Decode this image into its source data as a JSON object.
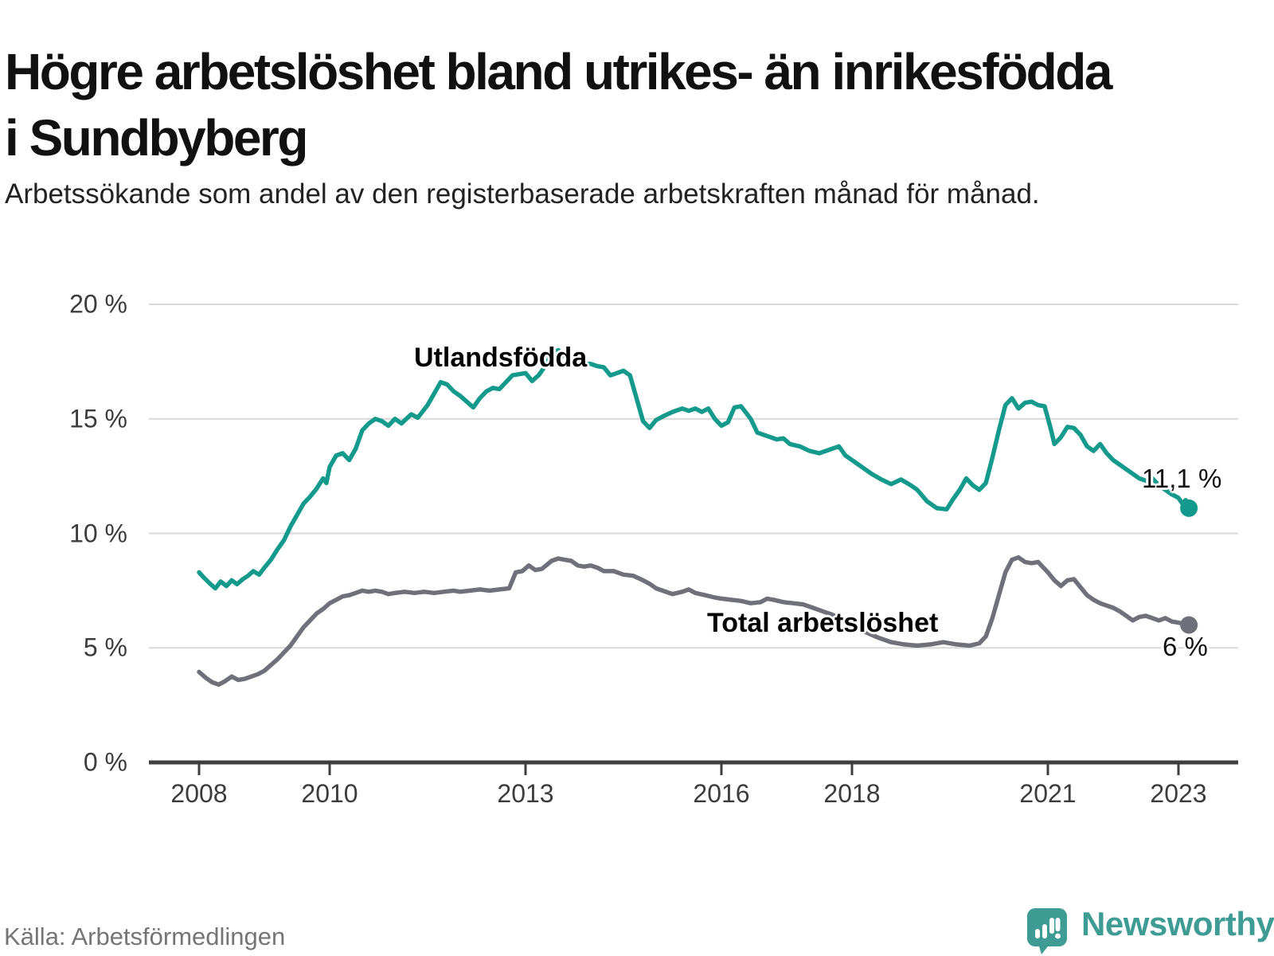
{
  "header": {
    "title": "Högre arbetslöshet bland utrikes- än inrikesfödda i Sundbyberg",
    "subtitle": "Arbetssökande som andel av den registerbaserade arbetskraften månad för månad."
  },
  "footer": {
    "source": "Källa: Arbetsförmedlingen",
    "brand": "Newsworthy",
    "brand_color": "#3e9c94",
    "logo_icon": "bar-chart-speech-bubble-icon"
  },
  "colors": {
    "teal_series": "#149a8d",
    "gray_series": "#70707a",
    "gridline": "#d9d9d9",
    "axis": "#3f3f3f",
    "annotation_text": "#111111"
  },
  "chart_data": {
    "type": "line",
    "title": "Högre arbetslöshet bland utrikes- än inrikesfödda i Sundbyberg",
    "subtitle": "Arbetssökande som andel av den registerbaserade arbetskraften månad för månad.",
    "xlabel": "",
    "ylabel": "",
    "unit": "%",
    "grid": true,
    "legend_position": "inline-labels-on-lines",
    "x_range": [
      2007.25,
      2023.95
    ],
    "ylim": [
      0,
      21
    ],
    "x_ticks": [
      2008,
      2010,
      2013,
      2016,
      2018,
      2021,
      2023
    ],
    "x_tick_labels": [
      "2008",
      "2010",
      "2013",
      "2016",
      "2018",
      "2021",
      "2023"
    ],
    "y_ticks": [
      0,
      5,
      10,
      15,
      20
    ],
    "y_tick_labels": [
      "0 %",
      "5 %",
      "10 %",
      "15 %",
      "20 %"
    ],
    "series": [
      {
        "name": "Utlandsfödda",
        "color": "#149a8d",
        "end_label": "11,1 %",
        "end_value": 11.1,
        "points": [
          [
            2008.0,
            8.3
          ],
          [
            2008.08,
            8.05
          ],
          [
            2008.17,
            7.8
          ],
          [
            2008.25,
            7.6
          ],
          [
            2008.33,
            7.9
          ],
          [
            2008.42,
            7.7
          ],
          [
            2008.5,
            7.95
          ],
          [
            2008.58,
            7.78
          ],
          [
            2008.67,
            8.0
          ],
          [
            2008.75,
            8.15
          ],
          [
            2008.83,
            8.35
          ],
          [
            2008.92,
            8.2
          ],
          [
            2009.0,
            8.5
          ],
          [
            2009.1,
            8.85
          ],
          [
            2009.2,
            9.3
          ],
          [
            2009.3,
            9.7
          ],
          [
            2009.4,
            10.3
          ],
          [
            2009.5,
            10.8
          ],
          [
            2009.6,
            11.3
          ],
          [
            2009.7,
            11.6
          ],
          [
            2009.8,
            11.95
          ],
          [
            2009.9,
            12.4
          ],
          [
            2009.95,
            12.2
          ],
          [
            2010.0,
            12.9
          ],
          [
            2010.1,
            13.4
          ],
          [
            2010.2,
            13.5
          ],
          [
            2010.3,
            13.2
          ],
          [
            2010.4,
            13.7
          ],
          [
            2010.5,
            14.5
          ],
          [
            2010.6,
            14.8
          ],
          [
            2010.7,
            15.0
          ],
          [
            2010.8,
            14.9
          ],
          [
            2010.9,
            14.7
          ],
          [
            2011.0,
            15.0
          ],
          [
            2011.1,
            14.8
          ],
          [
            2011.25,
            15.2
          ],
          [
            2011.35,
            15.05
          ],
          [
            2011.5,
            15.6
          ],
          [
            2011.6,
            16.1
          ],
          [
            2011.7,
            16.6
          ],
          [
            2011.8,
            16.5
          ],
          [
            2011.9,
            16.2
          ],
          [
            2012.0,
            16.0
          ],
          [
            2012.1,
            15.75
          ],
          [
            2012.2,
            15.5
          ],
          [
            2012.3,
            15.9
          ],
          [
            2012.4,
            16.2
          ],
          [
            2012.5,
            16.35
          ],
          [
            2012.6,
            16.3
          ],
          [
            2012.7,
            16.6
          ],
          [
            2012.8,
            16.9
          ],
          [
            2012.9,
            16.95
          ],
          [
            2013.0,
            17.0
          ],
          [
            2013.1,
            16.65
          ],
          [
            2013.2,
            16.9
          ],
          [
            2013.3,
            17.3
          ],
          [
            2013.4,
            17.85
          ],
          [
            2013.5,
            18.0
          ],
          [
            2013.6,
            17.75
          ],
          [
            2013.7,
            17.6
          ],
          [
            2013.8,
            17.5
          ],
          [
            2013.9,
            17.4
          ],
          [
            2014.0,
            17.4
          ],
          [
            2014.1,
            17.3
          ],
          [
            2014.2,
            17.25
          ],
          [
            2014.3,
            16.9
          ],
          [
            2014.4,
            17.0
          ],
          [
            2014.5,
            17.1
          ],
          [
            2014.6,
            16.9
          ],
          [
            2014.7,
            15.9
          ],
          [
            2014.8,
            14.9
          ],
          [
            2014.9,
            14.6
          ],
          [
            2015.0,
            14.95
          ],
          [
            2015.1,
            15.1
          ],
          [
            2015.25,
            15.3
          ],
          [
            2015.4,
            15.45
          ],
          [
            2015.5,
            15.35
          ],
          [
            2015.6,
            15.45
          ],
          [
            2015.7,
            15.3
          ],
          [
            2015.8,
            15.45
          ],
          [
            2015.9,
            15.0
          ],
          [
            2016.0,
            14.7
          ],
          [
            2016.1,
            14.85
          ],
          [
            2016.2,
            15.5
          ],
          [
            2016.3,
            15.55
          ],
          [
            2016.45,
            15.0
          ],
          [
            2016.55,
            14.4
          ],
          [
            2016.7,
            14.25
          ],
          [
            2016.85,
            14.1
          ],
          [
            2016.95,
            14.15
          ],
          [
            2017.05,
            13.9
          ],
          [
            2017.2,
            13.8
          ],
          [
            2017.35,
            13.6
          ],
          [
            2017.5,
            13.5
          ],
          [
            2017.65,
            13.65
          ],
          [
            2017.8,
            13.8
          ],
          [
            2017.9,
            13.4
          ],
          [
            2018.0,
            13.2
          ],
          [
            2018.15,
            12.9
          ],
          [
            2018.3,
            12.6
          ],
          [
            2018.45,
            12.35
          ],
          [
            2018.6,
            12.15
          ],
          [
            2018.75,
            12.35
          ],
          [
            2018.9,
            12.1
          ],
          [
            2019.0,
            11.9
          ],
          [
            2019.15,
            11.4
          ],
          [
            2019.3,
            11.1
          ],
          [
            2019.45,
            11.05
          ],
          [
            2019.55,
            11.5
          ],
          [
            2019.65,
            11.9
          ],
          [
            2019.75,
            12.4
          ],
          [
            2019.85,
            12.1
          ],
          [
            2019.95,
            11.9
          ],
          [
            2020.05,
            12.2
          ],
          [
            2020.15,
            13.3
          ],
          [
            2020.25,
            14.5
          ],
          [
            2020.35,
            15.6
          ],
          [
            2020.45,
            15.9
          ],
          [
            2020.55,
            15.45
          ],
          [
            2020.65,
            15.7
          ],
          [
            2020.75,
            15.75
          ],
          [
            2020.85,
            15.6
          ],
          [
            2020.95,
            15.55
          ],
          [
            2021.05,
            14.5
          ],
          [
            2021.1,
            13.9
          ],
          [
            2021.2,
            14.2
          ],
          [
            2021.3,
            14.65
          ],
          [
            2021.4,
            14.6
          ],
          [
            2021.5,
            14.3
          ],
          [
            2021.6,
            13.8
          ],
          [
            2021.7,
            13.6
          ],
          [
            2021.8,
            13.9
          ],
          [
            2021.9,
            13.5
          ],
          [
            2022.0,
            13.2
          ],
          [
            2022.1,
            13.0
          ],
          [
            2022.2,
            12.8
          ],
          [
            2022.3,
            12.6
          ],
          [
            2022.4,
            12.4
          ],
          [
            2022.5,
            12.3
          ],
          [
            2022.6,
            12.4
          ],
          [
            2022.7,
            12.1
          ],
          [
            2022.8,
            11.9
          ],
          [
            2022.9,
            11.7
          ],
          [
            2023.0,
            11.55
          ],
          [
            2023.06,
            11.3
          ],
          [
            2023.11,
            11.45
          ],
          [
            2023.16,
            11.1
          ]
        ]
      },
      {
        "name": "Total arbetslöshet",
        "color": "#70707a",
        "end_label": "6 %",
        "end_value": 6.0,
        "points": [
          [
            2008.0,
            3.95
          ],
          [
            2008.1,
            3.7
          ],
          [
            2008.2,
            3.5
          ],
          [
            2008.3,
            3.4
          ],
          [
            2008.4,
            3.55
          ],
          [
            2008.5,
            3.75
          ],
          [
            2008.6,
            3.6
          ],
          [
            2008.7,
            3.65
          ],
          [
            2008.8,
            3.75
          ],
          [
            2008.9,
            3.85
          ],
          [
            2009.0,
            4.0
          ],
          [
            2009.1,
            4.25
          ],
          [
            2009.2,
            4.5
          ],
          [
            2009.3,
            4.8
          ],
          [
            2009.4,
            5.1
          ],
          [
            2009.5,
            5.5
          ],
          [
            2009.6,
            5.9
          ],
          [
            2009.7,
            6.2
          ],
          [
            2009.8,
            6.5
          ],
          [
            2009.9,
            6.7
          ],
          [
            2010.0,
            6.95
          ],
          [
            2010.1,
            7.1
          ],
          [
            2010.2,
            7.25
          ],
          [
            2010.3,
            7.3
          ],
          [
            2010.4,
            7.4
          ],
          [
            2010.5,
            7.5
          ],
          [
            2010.6,
            7.45
          ],
          [
            2010.7,
            7.5
          ],
          [
            2010.8,
            7.45
          ],
          [
            2010.9,
            7.35
          ],
          [
            2011.0,
            7.4
          ],
          [
            2011.15,
            7.45
          ],
          [
            2011.3,
            7.4
          ],
          [
            2011.45,
            7.45
          ],
          [
            2011.6,
            7.4
          ],
          [
            2011.75,
            7.45
          ],
          [
            2011.9,
            7.5
          ],
          [
            2012.0,
            7.45
          ],
          [
            2012.15,
            7.5
          ],
          [
            2012.3,
            7.55
          ],
          [
            2012.45,
            7.5
          ],
          [
            2012.6,
            7.55
          ],
          [
            2012.75,
            7.6
          ],
          [
            2012.85,
            8.3
          ],
          [
            2012.95,
            8.35
          ],
          [
            2013.05,
            8.6
          ],
          [
            2013.15,
            8.4
          ],
          [
            2013.25,
            8.45
          ],
          [
            2013.4,
            8.8
          ],
          [
            2013.5,
            8.9
          ],
          [
            2013.6,
            8.85
          ],
          [
            2013.7,
            8.8
          ],
          [
            2013.8,
            8.6
          ],
          [
            2013.9,
            8.55
          ],
          [
            2014.0,
            8.6
          ],
          [
            2014.1,
            8.5
          ],
          [
            2014.2,
            8.35
          ],
          [
            2014.35,
            8.35
          ],
          [
            2014.5,
            8.2
          ],
          [
            2014.65,
            8.15
          ],
          [
            2014.8,
            7.95
          ],
          [
            2014.9,
            7.8
          ],
          [
            2015.0,
            7.6
          ],
          [
            2015.1,
            7.5
          ],
          [
            2015.25,
            7.35
          ],
          [
            2015.4,
            7.45
          ],
          [
            2015.5,
            7.55
          ],
          [
            2015.6,
            7.4
          ],
          [
            2015.75,
            7.3
          ],
          [
            2015.9,
            7.2
          ],
          [
            2016.0,
            7.15
          ],
          [
            2016.15,
            7.1
          ],
          [
            2016.3,
            7.05
          ],
          [
            2016.45,
            6.95
          ],
          [
            2016.6,
            7.0
          ],
          [
            2016.7,
            7.15
          ],
          [
            2016.8,
            7.1
          ],
          [
            2016.95,
            7.0
          ],
          [
            2017.1,
            6.95
          ],
          [
            2017.25,
            6.9
          ],
          [
            2017.4,
            6.75
          ],
          [
            2017.55,
            6.6
          ],
          [
            2017.7,
            6.45
          ],
          [
            2017.85,
            6.2
          ],
          [
            2018.0,
            6.0
          ],
          [
            2018.2,
            5.7
          ],
          [
            2018.4,
            5.45
          ],
          [
            2018.6,
            5.25
          ],
          [
            2018.8,
            5.15
          ],
          [
            2019.0,
            5.1
          ],
          [
            2019.2,
            5.15
          ],
          [
            2019.4,
            5.25
          ],
          [
            2019.6,
            5.15
          ],
          [
            2019.8,
            5.1
          ],
          [
            2019.95,
            5.2
          ],
          [
            2020.05,
            5.5
          ],
          [
            2020.15,
            6.3
          ],
          [
            2020.25,
            7.3
          ],
          [
            2020.35,
            8.3
          ],
          [
            2020.45,
            8.85
          ],
          [
            2020.55,
            8.95
          ],
          [
            2020.65,
            8.75
          ],
          [
            2020.75,
            8.7
          ],
          [
            2020.85,
            8.75
          ],
          [
            2020.9,
            8.6
          ],
          [
            2021.0,
            8.3
          ],
          [
            2021.1,
            7.95
          ],
          [
            2021.2,
            7.7
          ],
          [
            2021.3,
            7.95
          ],
          [
            2021.4,
            8.0
          ],
          [
            2021.5,
            7.65
          ],
          [
            2021.6,
            7.3
          ],
          [
            2021.7,
            7.1
          ],
          [
            2021.8,
            6.95
          ],
          [
            2021.9,
            6.85
          ],
          [
            2022.0,
            6.75
          ],
          [
            2022.1,
            6.6
          ],
          [
            2022.2,
            6.4
          ],
          [
            2022.3,
            6.2
          ],
          [
            2022.4,
            6.35
          ],
          [
            2022.5,
            6.4
          ],
          [
            2022.6,
            6.3
          ],
          [
            2022.7,
            6.2
          ],
          [
            2022.8,
            6.3
          ],
          [
            2022.9,
            6.15
          ],
          [
            2023.0,
            6.1
          ],
          [
            2023.08,
            6.05
          ],
          [
            2023.16,
            6.0
          ]
        ]
      }
    ]
  }
}
